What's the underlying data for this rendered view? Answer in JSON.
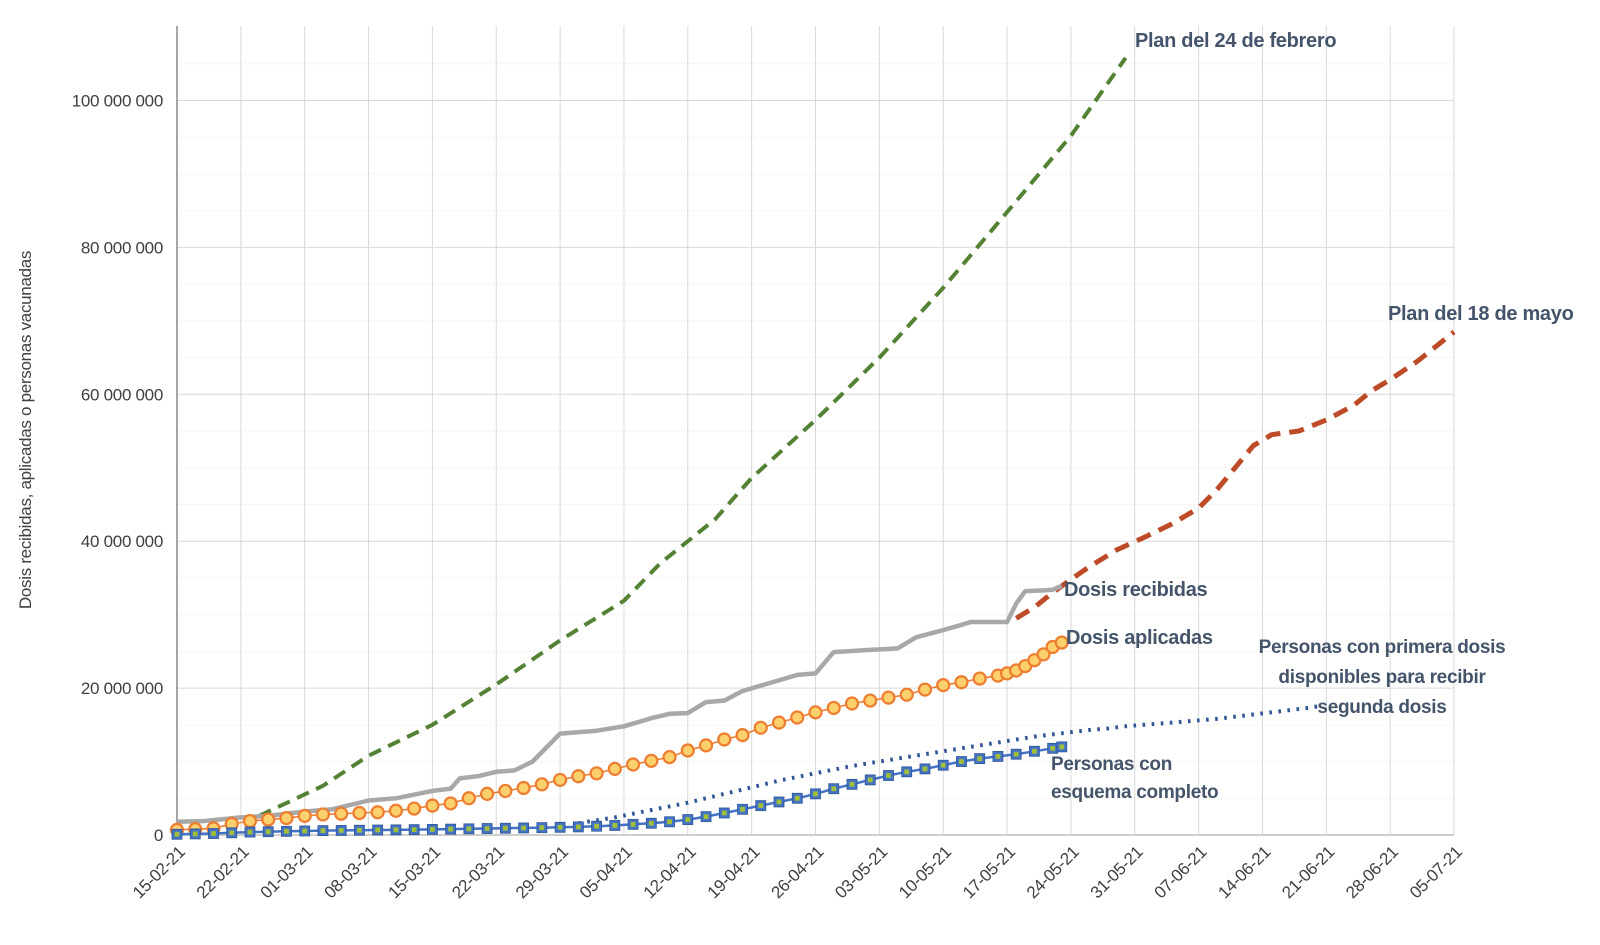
{
  "chart_data": {
    "type": "line",
    "title": "",
    "xlabel": "",
    "ylabel": "Dosis recibidas, aplicadas o personas vacunadas",
    "values_scale": 1000000,
    "ylim_millions": [
      0,
      110
    ],
    "grid": "major horizontal+vertical solid, minor horizontal dotted every 5M",
    "legend_position": "labels drawn next to line ends (no legend box)",
    "x_tick_labels": [
      "15-02-21",
      "22-02-21",
      "01-03-21",
      "08-03-21",
      "15-03-21",
      "22-03-21",
      "29-03-21",
      "05-04-21",
      "12-04-21",
      "19-04-21",
      "26-04-21",
      "03-05-21",
      "10-05-21",
      "17-05-21",
      "24-05-21",
      "31-05-21",
      "07-06-21",
      "14-06-21",
      "21-06-21",
      "28-06-21",
      "05-07-21"
    ],
    "y_tick_labels": [
      "0",
      "20 000 000",
      "40 000 000",
      "60 000 000",
      "80 000 000",
      "100 000 000"
    ],
    "y_tick_values_millions": [
      0,
      20,
      40,
      60,
      80,
      100
    ],
    "grid_colors": {
      "major": "#D9D9D9",
      "minor": "#EDE6E6",
      "y_axis_line": "#7F7F7F",
      "x_axis_line": "#BFBFBF"
    },
    "annotations": {
      "plan_feb24": "Plan del 24 de febrero",
      "plan_may18": "Plan del 18 de mayo",
      "dosis_recibidas": "Dosis recibidas",
      "dosis_aplicadas": "Dosis aplicadas",
      "primera_line1": "Personas con primera dosis",
      "primera_line2": "disponibles para recibir",
      "primera_line3": "segunda dosis",
      "esquema_line1": "Personas con",
      "esquema_line2": "esquema completo"
    },
    "series": [
      {
        "id": "plan-24-febrero",
        "name": "Plan del 24 de febrero",
        "style": "dashed",
        "color": "#548235",
        "stroke_width": 4,
        "dash": "13 8",
        "points_date_millions": [
          [
            "24-02-21",
            2.6
          ],
          [
            "03-03-21",
            6.7
          ],
          [
            "08-03-21",
            10.8
          ],
          [
            "15-03-21",
            15.0
          ],
          [
            "22-03-21",
            20.5
          ],
          [
            "29-03-21",
            26.5
          ],
          [
            "05-04-21",
            31.9
          ],
          [
            "09-04-21",
            37.0
          ],
          [
            "15-04-21",
            43.0
          ],
          [
            "19-04-21",
            48.6
          ],
          [
            "26-04-21",
            56.5
          ],
          [
            "03-05-21",
            65.0
          ],
          [
            "10-05-21",
            74.5
          ],
          [
            "17-05-21",
            84.8
          ],
          [
            "24-05-21",
            95.2
          ],
          [
            "30-05-21",
            105.8
          ]
        ]
      },
      {
        "id": "plan-18-mayo",
        "name": "Plan del 18 de mayo",
        "style": "dashed",
        "color": "#BE4B27",
        "stroke_width": 5,
        "dash": "15 9",
        "points_date_millions": [
          [
            "18-05-21",
            29.5
          ],
          [
            "20-05-21",
            31.0
          ],
          [
            "22-05-21",
            33.0
          ],
          [
            "24-05-21",
            34.8
          ],
          [
            "26-05-21",
            36.5
          ],
          [
            "29-05-21",
            38.8
          ],
          [
            "01-06-21",
            40.5
          ],
          [
            "04-06-21",
            42.3
          ],
          [
            "07-06-21",
            44.5
          ],
          [
            "09-06-21",
            47.0
          ],
          [
            "11-06-21",
            50.0
          ],
          [
            "13-06-21",
            53.0
          ],
          [
            "15-06-21",
            54.5
          ],
          [
            "18-06-21",
            55.0
          ],
          [
            "21-06-21",
            56.5
          ],
          [
            "24-06-21",
            58.5
          ],
          [
            "26-06-21",
            60.5
          ],
          [
            "28-06-21",
            62.0
          ],
          [
            "01-07-21",
            64.5
          ],
          [
            "03-07-21",
            66.5
          ],
          [
            "05-07-21",
            68.5
          ]
        ]
      },
      {
        "id": "dosis-recibidas",
        "name": "Dosis recibidas",
        "style": "solid-step",
        "color": "#A8A8A8",
        "stroke_width": 4.5,
        "points_date_millions": [
          [
            "15-02-21",
            1.8
          ],
          [
            "18-02-21",
            1.9
          ],
          [
            "22-02-21",
            2.4
          ],
          [
            "25-02-21",
            2.6
          ],
          [
            "01-03-21",
            3.2
          ],
          [
            "04-03-21",
            3.5
          ],
          [
            "08-03-21",
            4.7
          ],
          [
            "11-03-21",
            5.0
          ],
          [
            "15-03-21",
            6.0
          ],
          [
            "17-03-21",
            6.3
          ],
          [
            "18-03-21",
            7.7
          ],
          [
            "20-03-21",
            8.0
          ],
          [
            "22-03-21",
            8.6
          ],
          [
            "24-03-21",
            8.8
          ],
          [
            "26-03-21",
            10.0
          ],
          [
            "29-03-21",
            13.8
          ],
          [
            "02-04-21",
            14.2
          ],
          [
            "05-04-21",
            14.8
          ],
          [
            "08-04-21",
            15.9
          ],
          [
            "10-04-21",
            16.5
          ],
          [
            "12-04-21",
            16.6
          ],
          [
            "14-04-21",
            18.1
          ],
          [
            "16-04-21",
            18.3
          ],
          [
            "18-04-21",
            19.6
          ],
          [
            "21-04-21",
            20.7
          ],
          [
            "24-04-21",
            21.8
          ],
          [
            "26-04-21",
            22.0
          ],
          [
            "28-04-21",
            24.9
          ],
          [
            "02-05-21",
            25.2
          ],
          [
            "05-05-21",
            25.4
          ],
          [
            "07-05-21",
            26.9
          ],
          [
            "10-05-21",
            27.9
          ],
          [
            "12-05-21",
            28.6
          ],
          [
            "13-05-21",
            29.0
          ],
          [
            "17-05-21",
            29.0
          ],
          [
            "18-05-21",
            31.5
          ],
          [
            "19-05-21",
            33.2
          ],
          [
            "21-05-21",
            33.3
          ],
          [
            "22-05-21",
            33.4
          ],
          [
            "23-05-21",
            33.9
          ]
        ]
      },
      {
        "id": "dosis-aplicadas",
        "name": "Dosis aplicadas",
        "style": "line-circle-markers",
        "color": "#ED7D31",
        "marker_fill": "#FCD06C",
        "stroke_width": 1.6,
        "marker_radius": 6,
        "points_date_millions": [
          [
            "15-02-21",
            0.7
          ],
          [
            "17-02-21",
            0.8
          ],
          [
            "19-02-21",
            0.9
          ],
          [
            "21-02-21",
            1.5
          ],
          [
            "23-02-21",
            1.9
          ],
          [
            "25-02-21",
            2.1
          ],
          [
            "27-02-21",
            2.3
          ],
          [
            "01-03-21",
            2.6
          ],
          [
            "03-03-21",
            2.8
          ],
          [
            "05-03-21",
            2.9
          ],
          [
            "07-03-21",
            3.0
          ],
          [
            "09-03-21",
            3.1
          ],
          [
            "11-03-21",
            3.3
          ],
          [
            "13-03-21",
            3.6
          ],
          [
            "15-03-21",
            4.0
          ],
          [
            "17-03-21",
            4.3
          ],
          [
            "19-03-21",
            5.0
          ],
          [
            "21-03-21",
            5.6
          ],
          [
            "23-03-21",
            6.0
          ],
          [
            "25-03-21",
            6.4
          ],
          [
            "27-03-21",
            6.9
          ],
          [
            "29-03-21",
            7.5
          ],
          [
            "31-03-21",
            8.0
          ],
          [
            "02-04-21",
            8.4
          ],
          [
            "04-04-21",
            9.0
          ],
          [
            "06-04-21",
            9.6
          ],
          [
            "08-04-21",
            10.1
          ],
          [
            "10-04-21",
            10.6
          ],
          [
            "12-04-21",
            11.5
          ],
          [
            "14-04-21",
            12.2
          ],
          [
            "16-04-21",
            13.0
          ],
          [
            "18-04-21",
            13.6
          ],
          [
            "20-04-21",
            14.6
          ],
          [
            "22-04-21",
            15.3
          ],
          [
            "24-04-21",
            16.0
          ],
          [
            "26-04-21",
            16.7
          ],
          [
            "28-04-21",
            17.3
          ],
          [
            "30-04-21",
            17.9
          ],
          [
            "02-05-21",
            18.3
          ],
          [
            "04-05-21",
            18.7
          ],
          [
            "06-05-21",
            19.1
          ],
          [
            "08-05-21",
            19.8
          ],
          [
            "10-05-21",
            20.4
          ],
          [
            "12-05-21",
            20.8
          ],
          [
            "14-05-21",
            21.3
          ],
          [
            "16-05-21",
            21.7
          ],
          [
            "17-05-21",
            22.0
          ],
          [
            "18-05-21",
            22.4
          ],
          [
            "19-05-21",
            23.0
          ],
          [
            "20-05-21",
            23.8
          ],
          [
            "21-05-21",
            24.6
          ],
          [
            "22-05-21",
            25.6
          ],
          [
            "23-05-21",
            26.2
          ]
        ]
      },
      {
        "id": "personas-primera-dosis",
        "name": "Personas con primera dosis disponibles para recibir segunda dosis",
        "style": "dotted",
        "color": "#2F5597",
        "stroke_width": 4,
        "dash": "2.6 6.5",
        "points_date_millions": [
          [
            "31-03-21",
            1.6
          ],
          [
            "02-04-21",
            2.0
          ],
          [
            "04-04-21",
            2.4
          ],
          [
            "06-04-21",
            2.9
          ],
          [
            "08-04-21",
            3.4
          ],
          [
            "10-04-21",
            3.9
          ],
          [
            "12-04-21",
            4.4
          ],
          [
            "14-04-21",
            5.0
          ],
          [
            "16-04-21",
            5.6
          ],
          [
            "18-04-21",
            6.2
          ],
          [
            "20-04-21",
            6.8
          ],
          [
            "22-04-21",
            7.4
          ],
          [
            "24-04-21",
            7.9
          ],
          [
            "26-04-21",
            8.4
          ],
          [
            "28-04-21",
            8.9
          ],
          [
            "30-04-21",
            9.4
          ],
          [
            "02-05-21",
            9.8
          ],
          [
            "04-05-21",
            10.2
          ],
          [
            "06-05-21",
            10.6
          ],
          [
            "08-05-21",
            11.0
          ],
          [
            "10-05-21",
            11.4
          ],
          [
            "12-05-21",
            11.8
          ],
          [
            "14-05-21",
            12.2
          ],
          [
            "16-05-21",
            12.6
          ],
          [
            "18-05-21",
            13.0
          ],
          [
            "20-05-21",
            13.4
          ],
          [
            "22-05-21",
            13.7
          ],
          [
            "24-05-21",
            14.0
          ],
          [
            "26-05-21",
            14.3
          ],
          [
            "28-05-21",
            14.5
          ],
          [
            "30-05-21",
            14.8
          ],
          [
            "01-06-21",
            15.0
          ],
          [
            "03-06-21",
            15.2
          ],
          [
            "05-06-21",
            15.4
          ],
          [
            "07-06-21",
            15.6
          ],
          [
            "09-06-21",
            15.8
          ],
          [
            "11-06-21",
            16.1
          ],
          [
            "13-06-21",
            16.4
          ],
          [
            "15-06-21",
            16.7
          ],
          [
            "17-06-21",
            17.0
          ],
          [
            "19-06-21",
            17.3
          ],
          [
            "20-06-21",
            17.5
          ]
        ]
      },
      {
        "id": "esquema-completo",
        "name": "Personas con esquema completo",
        "style": "line-square-markers",
        "color": "#4472C4",
        "marker_inner": "#9FBF3B",
        "stroke_width": 2.5,
        "marker_size": 10,
        "points_date_millions": [
          [
            "15-02-21",
            0.1
          ],
          [
            "17-02-21",
            0.15
          ],
          [
            "19-02-21",
            0.2
          ],
          [
            "21-02-21",
            0.3
          ],
          [
            "23-02-21",
            0.4
          ],
          [
            "25-02-21",
            0.45
          ],
          [
            "27-02-21",
            0.5
          ],
          [
            "01-03-21",
            0.55
          ],
          [
            "03-03-21",
            0.6
          ],
          [
            "05-03-21",
            0.62
          ],
          [
            "07-03-21",
            0.65
          ],
          [
            "09-03-21",
            0.68
          ],
          [
            "11-03-21",
            0.7
          ],
          [
            "13-03-21",
            0.73
          ],
          [
            "15-03-21",
            0.76
          ],
          [
            "17-03-21",
            0.8
          ],
          [
            "19-03-21",
            0.84
          ],
          [
            "21-03-21",
            0.88
          ],
          [
            "23-03-21",
            0.92
          ],
          [
            "25-03-21",
            0.96
          ],
          [
            "27-03-21",
            1.0
          ],
          [
            "29-03-21",
            1.05
          ],
          [
            "31-03-21",
            1.1
          ],
          [
            "02-04-21",
            1.2
          ],
          [
            "04-04-21",
            1.3
          ],
          [
            "06-04-21",
            1.45
          ],
          [
            "08-04-21",
            1.6
          ],
          [
            "10-04-21",
            1.8
          ],
          [
            "12-04-21",
            2.1
          ],
          [
            "14-04-21",
            2.5
          ],
          [
            "16-04-21",
            3.0
          ],
          [
            "18-04-21",
            3.5
          ],
          [
            "20-04-21",
            4.0
          ],
          [
            "22-04-21",
            4.5
          ],
          [
            "24-04-21",
            5.0
          ],
          [
            "26-04-21",
            5.6
          ],
          [
            "28-04-21",
            6.3
          ],
          [
            "30-04-21",
            6.9
          ],
          [
            "02-05-21",
            7.5
          ],
          [
            "04-05-21",
            8.1
          ],
          [
            "06-05-21",
            8.6
          ],
          [
            "08-05-21",
            9.0
          ],
          [
            "10-05-21",
            9.5
          ],
          [
            "12-05-21",
            10.0
          ],
          [
            "14-05-21",
            10.4
          ],
          [
            "16-05-21",
            10.7
          ],
          [
            "18-05-21",
            11.0
          ],
          [
            "20-05-21",
            11.4
          ],
          [
            "22-05-21",
            11.8
          ],
          [
            "23-05-21",
            12.0
          ]
        ]
      }
    ]
  }
}
